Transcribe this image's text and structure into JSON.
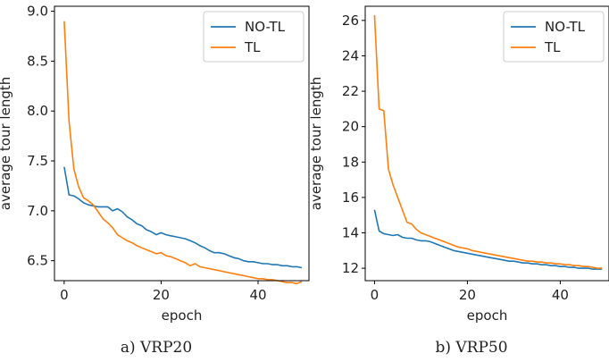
{
  "chart_data": [
    {
      "type": "line",
      "caption": "a) VRP20",
      "xlabel": "epoch",
      "ylabel": "average tour length",
      "xlim": [
        -2,
        50.5
      ],
      "ylim": [
        6.3,
        9.05
      ],
      "xticks": [
        0,
        20,
        40
      ],
      "yticks": [
        6.5,
        7.0,
        7.5,
        8.0,
        8.5,
        9.0
      ],
      "ytick_format": 1,
      "grid": false,
      "legend": "top-right",
      "x": [
        0,
        1,
        2,
        3,
        4,
        5,
        6,
        7,
        8,
        9,
        10,
        11,
        12,
        13,
        14,
        15,
        16,
        17,
        18,
        19,
        20,
        21,
        22,
        23,
        24,
        25,
        26,
        27,
        28,
        29,
        30,
        31,
        32,
        33,
        34,
        35,
        36,
        37,
        38,
        39,
        40,
        41,
        42,
        43,
        44,
        45,
        46,
        47,
        48,
        49
      ],
      "series": [
        {
          "name": "NO-TL",
          "color": "#1f77b4",
          "values": [
            7.44,
            7.16,
            7.15,
            7.12,
            7.08,
            7.06,
            7.05,
            7.04,
            7.04,
            7.04,
            7.0,
            7.02,
            6.99,
            6.94,
            6.91,
            6.87,
            6.85,
            6.81,
            6.79,
            6.76,
            6.78,
            6.76,
            6.75,
            6.74,
            6.73,
            6.72,
            6.7,
            6.68,
            6.65,
            6.63,
            6.6,
            6.58,
            6.58,
            6.57,
            6.55,
            6.53,
            6.52,
            6.5,
            6.49,
            6.49,
            6.48,
            6.47,
            6.47,
            6.46,
            6.46,
            6.45,
            6.45,
            6.44,
            6.44,
            6.43
          ]
        },
        {
          "name": "TL",
          "color": "#ff7f0e",
          "values": [
            8.9,
            7.9,
            7.42,
            7.24,
            7.13,
            7.1,
            7.06,
            6.99,
            6.92,
            6.88,
            6.83,
            6.76,
            6.73,
            6.7,
            6.68,
            6.65,
            6.63,
            6.61,
            6.59,
            6.57,
            6.58,
            6.55,
            6.54,
            6.52,
            6.5,
            6.48,
            6.45,
            6.47,
            6.44,
            6.43,
            6.42,
            6.41,
            6.4,
            6.39,
            6.38,
            6.37,
            6.36,
            6.35,
            6.34,
            6.33,
            6.32,
            6.32,
            6.31,
            6.31,
            6.3,
            6.29,
            6.28,
            6.28,
            6.27,
            6.29
          ]
        }
      ]
    },
    {
      "type": "line",
      "caption": "b) VRP50",
      "xlabel": "epoch",
      "ylabel": "average tour length",
      "xlim": [
        -2,
        50.5
      ],
      "ylim": [
        11.3,
        26.8
      ],
      "xticks": [
        0,
        20,
        40
      ],
      "yticks": [
        12,
        14,
        16,
        18,
        20,
        22,
        24,
        26
      ],
      "ytick_format": 0,
      "grid": false,
      "legend": "top-right",
      "x": [
        0,
        1,
        2,
        3,
        4,
        5,
        6,
        7,
        8,
        9,
        10,
        11,
        12,
        13,
        14,
        15,
        16,
        17,
        18,
        19,
        20,
        21,
        22,
        23,
        24,
        25,
        26,
        27,
        28,
        29,
        30,
        31,
        32,
        33,
        34,
        35,
        36,
        37,
        38,
        39,
        40,
        41,
        42,
        43,
        44,
        45,
        46,
        47,
        48,
        49
      ],
      "series": [
        {
          "name": "NO-TL",
          "color": "#1f77b4",
          "values": [
            15.3,
            14.1,
            13.95,
            13.9,
            13.85,
            13.9,
            13.75,
            13.7,
            13.7,
            13.6,
            13.55,
            13.55,
            13.5,
            13.4,
            13.3,
            13.2,
            13.1,
            13.0,
            12.95,
            12.9,
            12.85,
            12.8,
            12.75,
            12.7,
            12.65,
            12.6,
            12.55,
            12.5,
            12.45,
            12.4,
            12.4,
            12.35,
            12.3,
            12.3,
            12.25,
            12.25,
            12.2,
            12.2,
            12.15,
            12.15,
            12.1,
            12.1,
            12.05,
            12.05,
            12.0,
            12.0,
            12.0,
            11.95,
            11.95,
            11.95
          ]
        },
        {
          "name": "TL",
          "color": "#ff7f0e",
          "values": [
            26.3,
            21.0,
            20.9,
            17.6,
            16.7,
            16.0,
            15.3,
            14.6,
            14.5,
            14.2,
            14.0,
            13.9,
            13.8,
            13.7,
            13.6,
            13.5,
            13.4,
            13.3,
            13.2,
            13.15,
            13.1,
            13.0,
            12.95,
            12.9,
            12.85,
            12.8,
            12.75,
            12.7,
            12.65,
            12.6,
            12.55,
            12.5,
            12.45,
            12.4,
            12.4,
            12.35,
            12.35,
            12.3,
            12.3,
            12.25,
            12.25,
            12.2,
            12.2,
            12.15,
            12.15,
            12.1,
            12.1,
            12.05,
            12.0,
            12.0
          ]
        }
      ]
    }
  ]
}
